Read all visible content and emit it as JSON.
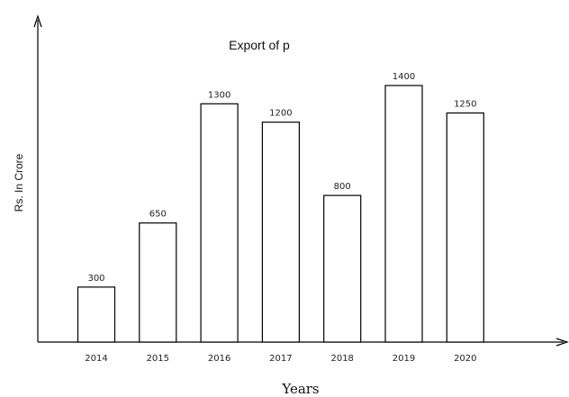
{
  "chart_data": {
    "type": "bar",
    "title": "Export of p",
    "xlabel": "Years",
    "ylabel": "Rs. In Crore",
    "categories": [
      "2014",
      "2015",
      "2016",
      "2017",
      "2018",
      "2019",
      "2020"
    ],
    "values": [
      300,
      650,
      1300,
      1200,
      800,
      1400,
      1250
    ],
    "value_labels": [
      "300",
      "650",
      "1300",
      "1200",
      "800",
      "1400",
      "1250"
    ],
    "bar_color": "#ffffff",
    "bar_edge_color": "#000000",
    "grid": false
  }
}
